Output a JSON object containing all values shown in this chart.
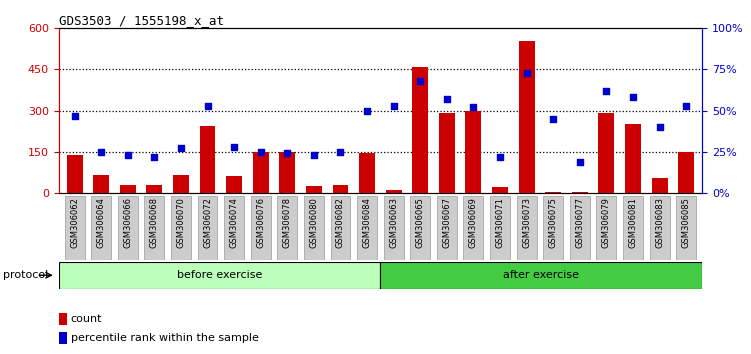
{
  "title": "GDS3503 / 1555198_x_at",
  "samples": [
    "GSM306062",
    "GSM306064",
    "GSM306066",
    "GSM306068",
    "GSM306070",
    "GSM306072",
    "GSM306074",
    "GSM306076",
    "GSM306078",
    "GSM306080",
    "GSM306082",
    "GSM306084",
    "GSM306063",
    "GSM306065",
    "GSM306067",
    "GSM306069",
    "GSM306071",
    "GSM306073",
    "GSM306075",
    "GSM306077",
    "GSM306079",
    "GSM306081",
    "GSM306083",
    "GSM306085"
  ],
  "count": [
    140,
    65,
    30,
    30,
    65,
    245,
    60,
    150,
    150,
    25,
    30,
    145,
    10,
    460,
    290,
    300,
    20,
    555,
    5,
    5,
    290,
    250,
    55,
    150
  ],
  "percentile": [
    47,
    25,
    23,
    22,
    27,
    53,
    28,
    25,
    24,
    23,
    25,
    50,
    53,
    68,
    57,
    52,
    22,
    73,
    45,
    19,
    62,
    58,
    40,
    53
  ],
  "n_before": 12,
  "n_after": 12,
  "left_ylim": [
    0,
    600
  ],
  "right_ylim": [
    0,
    100
  ],
  "left_yticks": [
    0,
    150,
    300,
    450,
    600
  ],
  "right_yticks": [
    0,
    25,
    50,
    75,
    100
  ],
  "right_yticklabels": [
    "0%",
    "25%",
    "50%",
    "75%",
    "100%"
  ],
  "bar_color": "#cc0000",
  "dot_color": "#0000cc",
  "before_color": "#bbffbb",
  "after_color": "#44cc44",
  "protocol_label": "protocol",
  "before_label": "before exercise",
  "after_label": "after exercise",
  "count_legend": "count",
  "percentile_legend": "percentile rank within the sample",
  "title_color": "#000000",
  "left_axis_color": "#cc0000",
  "right_axis_color": "#0000cc",
  "bg_color": "#ffffff",
  "tick_label_bg": "#cccccc",
  "grid_yticks": [
    150,
    300,
    450
  ]
}
